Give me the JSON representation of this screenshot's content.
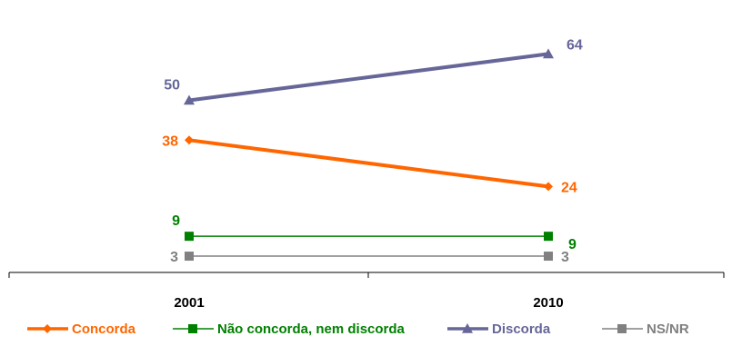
{
  "chart_data": {
    "type": "line",
    "categories": [
      "2001",
      "2010"
    ],
    "series": [
      {
        "name": "Concorda",
        "values": [
          38,
          24
        ],
        "color": "#FF6600",
        "marker": "diamond",
        "label_pos": [
          "left",
          "right"
        ]
      },
      {
        "name": "Não concorda, nem discorda",
        "values": [
          9,
          9
        ],
        "color": "#008000",
        "marker": "square",
        "label_pos": [
          "above-left",
          "below-right"
        ]
      },
      {
        "name": "Discorda",
        "values": [
          50,
          64
        ],
        "color": "#666699",
        "marker": "triangle",
        "label_pos": [
          "above-left",
          "above-right"
        ]
      },
      {
        "name": "NS/NR",
        "values": [
          3,
          3
        ],
        "color": "#808080",
        "marker": "square",
        "label_pos": [
          "left",
          "right"
        ]
      }
    ],
    "legend_position": "bottom",
    "grid": false,
    "ylim": [
      0,
      70
    ]
  }
}
